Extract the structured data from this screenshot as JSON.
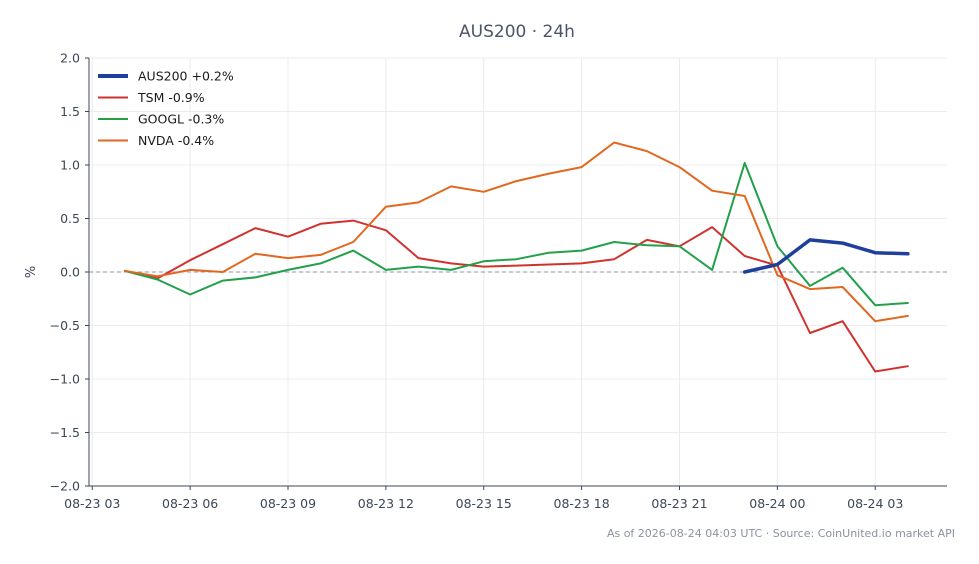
{
  "chart_data": {
    "type": "line",
    "title": "AUS200 · 24h",
    "ylabel": "%",
    "xlabel": "",
    "ylim": [
      -2.0,
      2.0
    ],
    "yticks": [
      2.0,
      1.5,
      1.0,
      0.5,
      0.0,
      -0.5,
      -1.0,
      -1.5,
      -2.0
    ],
    "ytick_labels": [
      "2.0",
      "1.5",
      "1.0",
      "0.5",
      "0.0",
      "−0.5",
      "−1.0",
      "−1.5",
      "−2.0"
    ],
    "xticks": [
      {
        "label": "08-23 03",
        "hour": 3
      },
      {
        "label": "08-23 06",
        "hour": 6
      },
      {
        "label": "08-23 09",
        "hour": 9
      },
      {
        "label": "08-23 12",
        "hour": 12
      },
      {
        "label": "08-23 15",
        "hour": 15
      },
      {
        "label": "08-23 18",
        "hour": 18
      },
      {
        "label": "08-23 21",
        "hour": 21
      },
      {
        "label": "08-24 00",
        "hour": 24
      },
      {
        "label": "08-24 03",
        "hour": 27
      }
    ],
    "xlim_hours": [
      2.9,
      29.2
    ],
    "zero_line": true,
    "grid": true,
    "legend_position": "top-left",
    "series": [
      {
        "name": "AUS200 +0.2%",
        "color": "#1f3f9c",
        "emphasis": true,
        "hours": [
          23,
          24,
          25,
          26,
          27,
          28
        ],
        "values": [
          0.0,
          0.07,
          0.3,
          0.27,
          0.18,
          0.17
        ]
      },
      {
        "name": "TSM -0.9%",
        "color": "#d1322e",
        "emphasis": false,
        "hours": [
          4,
          5,
          6,
          7,
          8,
          9,
          10,
          11,
          12,
          13,
          14,
          15,
          16,
          17,
          18,
          19,
          20,
          21,
          22,
          23,
          24,
          25,
          26,
          27,
          28
        ],
        "values": [
          0.01,
          -0.06,
          0.11,
          0.26,
          0.41,
          0.33,
          0.45,
          0.48,
          0.39,
          0.13,
          0.08,
          0.05,
          0.06,
          0.07,
          0.08,
          0.12,
          0.3,
          0.24,
          0.42,
          0.15,
          0.06,
          -0.57,
          -0.46,
          -0.93,
          -0.88
        ]
      },
      {
        "name": "GOOGL -0.3%",
        "color": "#22a04a",
        "emphasis": false,
        "hours": [
          4,
          5,
          6,
          7,
          8,
          9,
          10,
          11,
          12,
          13,
          14,
          15,
          16,
          17,
          18,
          19,
          20,
          21,
          22,
          23,
          24,
          25,
          26,
          27,
          28
        ],
        "values": [
          0.01,
          -0.07,
          -0.21,
          -0.08,
          -0.05,
          0.02,
          0.08,
          0.2,
          0.02,
          0.05,
          0.02,
          0.1,
          0.12,
          0.18,
          0.2,
          0.28,
          0.25,
          0.24,
          0.02,
          1.02,
          0.24,
          -0.13,
          0.04,
          -0.31,
          -0.29
        ]
      },
      {
        "name": "NVDA -0.4%",
        "color": "#e2671f",
        "emphasis": false,
        "hours": [
          4,
          5,
          6,
          7,
          8,
          9,
          10,
          11,
          12,
          13,
          14,
          15,
          16,
          17,
          18,
          19,
          20,
          21,
          22,
          23,
          24,
          25,
          26,
          27,
          28
        ],
        "values": [
          0.01,
          -0.04,
          0.02,
          0.0,
          0.17,
          0.13,
          0.16,
          0.28,
          0.61,
          0.65,
          0.8,
          0.75,
          0.85,
          0.92,
          0.98,
          1.21,
          1.13,
          0.98,
          0.76,
          0.71,
          -0.03,
          -0.16,
          -0.14,
          -0.46,
          -0.41
        ]
      }
    ]
  },
  "footer": "As of 2026-08-24 04:03 UTC · Source: CoinUnited.io market API"
}
